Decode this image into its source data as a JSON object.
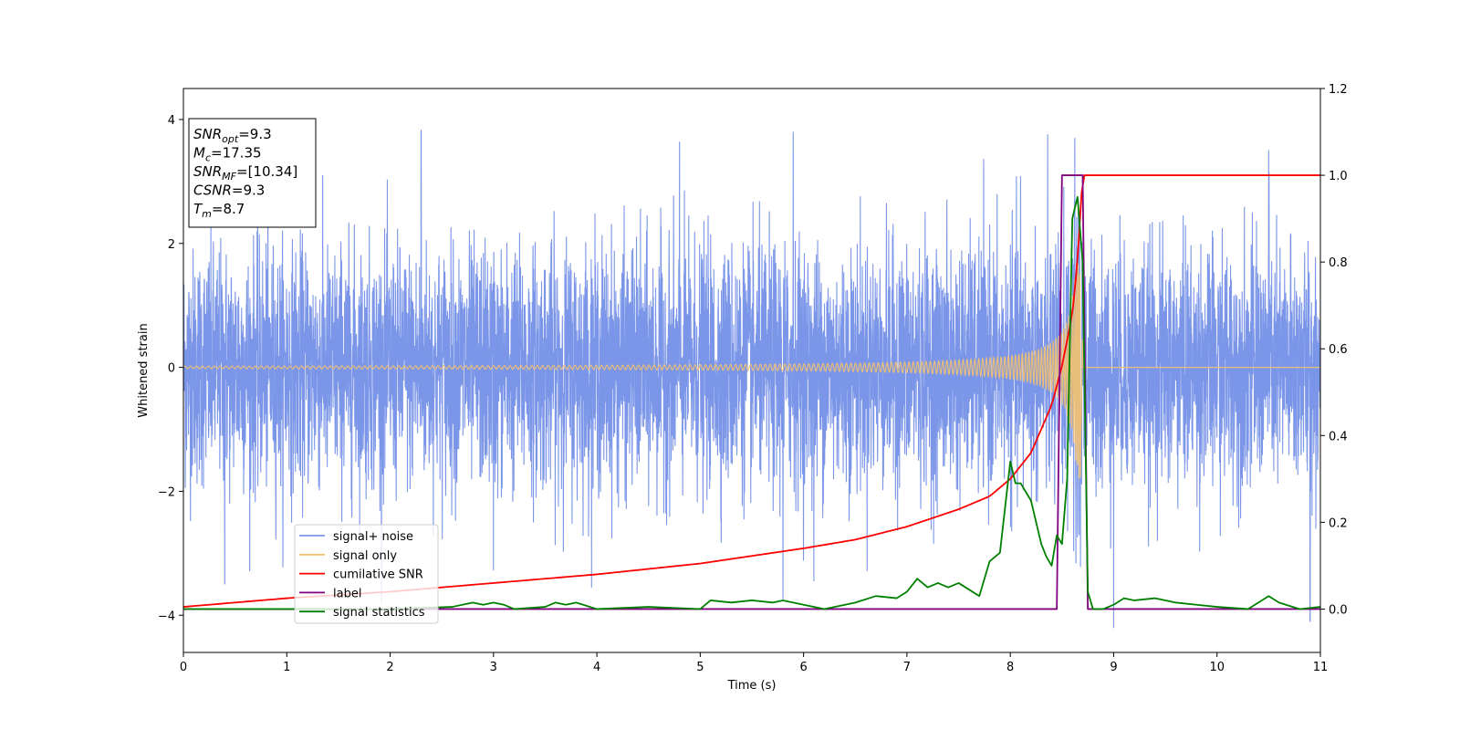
{
  "chart_data": {
    "type": "line",
    "xlabel": "Time (s)",
    "ylabel": "Whitened strain",
    "xlim": [
      0,
      11
    ],
    "ylim_left": [
      -4.6,
      4.5
    ],
    "ylim_right": [
      -0.1,
      1.2
    ],
    "x_ticks": [
      "0",
      "1",
      "2",
      "3",
      "4",
      "5",
      "6",
      "7",
      "8",
      "9",
      "10",
      "11"
    ],
    "y_ticks_left": [
      "−4",
      "−2",
      "0",
      "2",
      "4"
    ],
    "y_ticks_right": [
      "0.0",
      "0.2",
      "0.4",
      "0.6",
      "0.8",
      "1.0",
      "1.2"
    ],
    "merger_time": 8.7,
    "series": [
      {
        "name": "signal+ noise",
        "axis": "left",
        "color": "#7b96e8",
        "description_kind": "noise",
        "noise_std": 0.95,
        "noise_extremes": [
          [
            0.4,
            -3.5
          ],
          [
            2.3,
            3.8
          ],
          [
            3.0,
            -3.3
          ],
          [
            4.8,
            3.6
          ],
          [
            5.8,
            -3.7
          ],
          [
            5.9,
            3.8
          ],
          [
            6.1,
            -3.5
          ],
          [
            8.1,
            3.3
          ],
          [
            9.0,
            -4.2
          ],
          [
            10.5,
            3.5
          ],
          [
            10.9,
            -4.1
          ]
        ]
      },
      {
        "name": "signal only",
        "axis": "left",
        "color": "#f5c16e",
        "description_kind": "chirp",
        "amplitude_start": 0.02,
        "amplitude_peak": 1.8,
        "freq_start": 12,
        "freq_end": 60
      },
      {
        "name": "cumilative SNR",
        "axis": "right",
        "color": "#ff0000",
        "x": [
          0,
          1,
          2,
          3,
          4,
          5,
          6,
          6.5,
          7,
          7.5,
          7.8,
          8.0,
          8.2,
          8.4,
          8.5,
          8.6,
          8.65,
          8.7,
          11
        ],
        "y": [
          0.005,
          0.025,
          0.04,
          0.06,
          0.08,
          0.105,
          0.14,
          0.16,
          0.19,
          0.23,
          0.26,
          0.3,
          0.36,
          0.47,
          0.56,
          0.68,
          0.8,
          1.0,
          1.0
        ]
      },
      {
        "name": "label",
        "axis": "right",
        "color": "#800080",
        "x": [
          0,
          8.45,
          8.5,
          8.7,
          8.75,
          11
        ],
        "y": [
          0,
          0,
          1,
          1,
          0,
          0
        ]
      },
      {
        "name": "signal statistics",
        "axis": "right",
        "color": "#008000",
        "x": [
          0,
          1,
          2,
          2.6,
          2.8,
          2.9,
          3.0,
          3.1,
          3.2,
          3.5,
          3.6,
          3.7,
          3.8,
          4.0,
          4.5,
          5.0,
          5.1,
          5.3,
          5.5,
          5.7,
          5.8,
          6.0,
          6.2,
          6.5,
          6.7,
          6.9,
          7.0,
          7.1,
          7.2,
          7.3,
          7.4,
          7.5,
          7.6,
          7.7,
          7.8,
          7.9,
          8.0,
          8.05,
          8.1,
          8.2,
          8.3,
          8.35,
          8.4,
          8.45,
          8.5,
          8.55,
          8.6,
          8.65,
          8.7,
          8.75,
          8.8,
          8.9,
          9.0,
          9.1,
          9.2,
          9.4,
          9.6,
          9.8,
          10.0,
          10.3,
          10.5,
          10.6,
          10.8,
          11.0
        ],
        "y": [
          0.0,
          0.0,
          0.0,
          0.005,
          0.015,
          0.01,
          0.015,
          0.01,
          0.0,
          0.005,
          0.015,
          0.01,
          0.015,
          0.0,
          0.005,
          0.0,
          0.02,
          0.015,
          0.02,
          0.015,
          0.02,
          0.01,
          0.0,
          0.015,
          0.03,
          0.025,
          0.04,
          0.07,
          0.05,
          0.06,
          0.05,
          0.06,
          0.045,
          0.03,
          0.11,
          0.13,
          0.34,
          0.29,
          0.29,
          0.25,
          0.15,
          0.12,
          0.1,
          0.17,
          0.15,
          0.3,
          0.9,
          0.95,
          0.8,
          0.04,
          0.0,
          0.0,
          0.01,
          0.025,
          0.02,
          0.025,
          0.015,
          0.01,
          0.005,
          0.0,
          0.03,
          0.015,
          0.0,
          0.005
        ]
      }
    ],
    "legend": {
      "placement": "lower-left",
      "entries": [
        {
          "label": "signal+ noise",
          "color": "#7b96e8"
        },
        {
          "label": "signal only",
          "color": "#f5c16e"
        },
        {
          "label": "cumilative SNR",
          "color": "#ff0000"
        },
        {
          "label": "label",
          "color": "#800080"
        },
        {
          "label": "signal statistics",
          "color": "#008000"
        }
      ]
    },
    "info_box": {
      "placement": "top-left",
      "lines": [
        {
          "sym": "SNR",
          "sub": "opt",
          "value": "=9.3"
        },
        {
          "sym": "M",
          "sub": "c",
          "value": "=17.35"
        },
        {
          "sym": "SNR",
          "sub": "MF",
          "value": "=[10.34]"
        },
        {
          "sym": "CSNR",
          "sub": "",
          "value": "=9.3"
        },
        {
          "sym": "T",
          "sub": "m",
          "value": "=8.7"
        }
      ]
    }
  }
}
